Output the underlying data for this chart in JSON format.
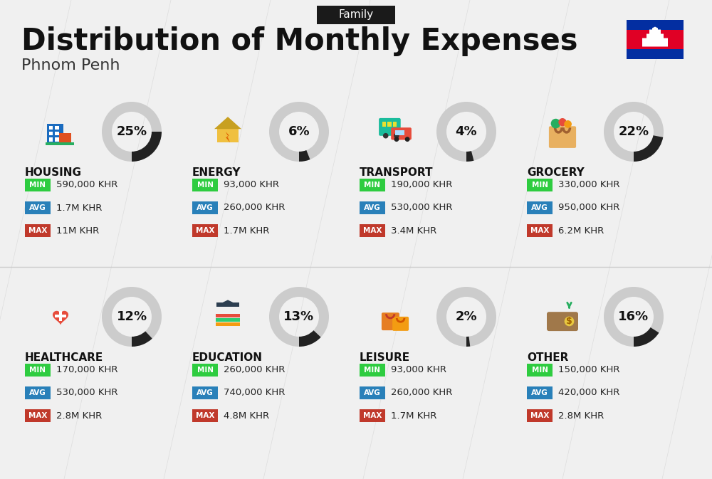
{
  "title": "Distribution of Monthly Expenses",
  "subtitle": "Phnom Penh",
  "family_label": "Family",
  "background_color": "#f0f0f0",
  "categories": [
    {
      "name": "HOUSING",
      "pct": 25,
      "min": "590,000 KHR",
      "avg": "1.7M KHR",
      "max": "11M KHR",
      "icon": "housing",
      "row": 0,
      "col": 0
    },
    {
      "name": "ENERGY",
      "pct": 6,
      "min": "93,000 KHR",
      "avg": "260,000 KHR",
      "max": "1.7M KHR",
      "icon": "energy",
      "row": 0,
      "col": 1
    },
    {
      "name": "TRANSPORT",
      "pct": 4,
      "min": "190,000 KHR",
      "avg": "530,000 KHR",
      "max": "3.4M KHR",
      "icon": "transport",
      "row": 0,
      "col": 2
    },
    {
      "name": "GROCERY",
      "pct": 22,
      "min": "330,000 KHR",
      "avg": "950,000 KHR",
      "max": "6.2M KHR",
      "icon": "grocery",
      "row": 0,
      "col": 3
    },
    {
      "name": "HEALTHCARE",
      "pct": 12,
      "min": "170,000 KHR",
      "avg": "530,000 KHR",
      "max": "2.8M KHR",
      "icon": "healthcare",
      "row": 1,
      "col": 0
    },
    {
      "name": "EDUCATION",
      "pct": 13,
      "min": "260,000 KHR",
      "avg": "740,000 KHR",
      "max": "4.8M KHR",
      "icon": "education",
      "row": 1,
      "col": 1
    },
    {
      "name": "LEISURE",
      "pct": 2,
      "min": "93,000 KHR",
      "avg": "260,000 KHR",
      "max": "1.7M KHR",
      "icon": "leisure",
      "row": 1,
      "col": 2
    },
    {
      "name": "OTHER",
      "pct": 16,
      "min": "150,000 KHR",
      "avg": "420,000 KHR",
      "max": "2.8M KHR",
      "icon": "other",
      "row": 1,
      "col": 3
    }
  ],
  "min_color": "#2ecc40",
  "avg_color": "#2980b9",
  "max_color": "#c0392b",
  "donut_bg_color": "#cccccc",
  "donut_fg_color": "#222222",
  "label_color_min": "#27ae60",
  "label_color_avg": "#2471a3",
  "label_color_max": "#922b21"
}
